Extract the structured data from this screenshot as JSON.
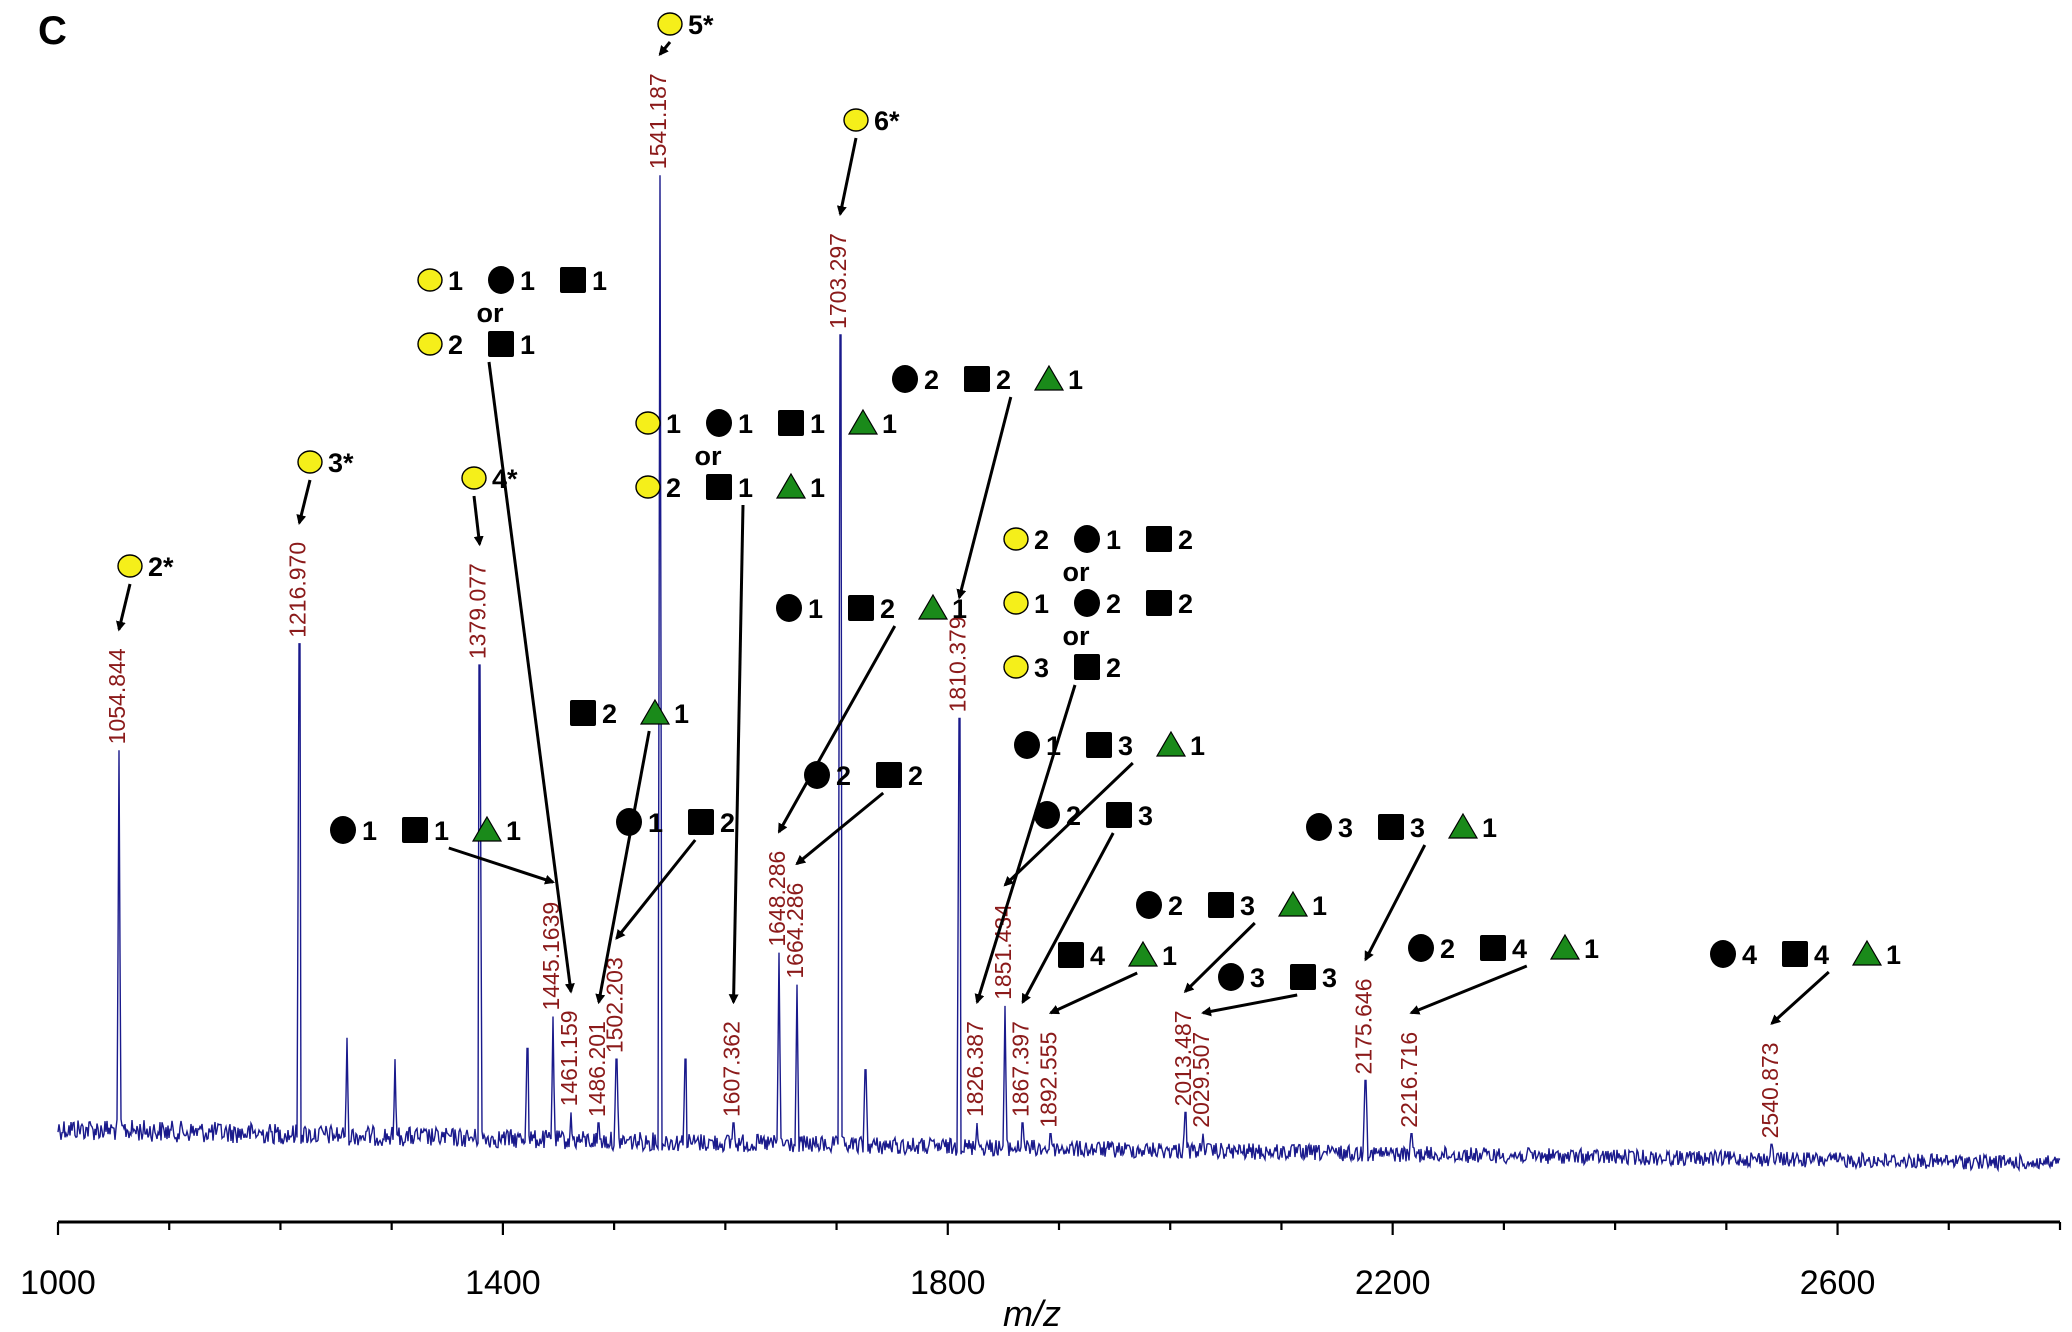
{
  "panel_letter": "C",
  "colors": {
    "trace": "#1a1a8c",
    "peak_label": "#8b1a1a",
    "galactose_circle": "#f5ef1a",
    "fucose_triangle": "#1a8a1a",
    "mannose_circle": "#000000",
    "glcnac_square": "#000000"
  },
  "chart_data": {
    "type": "line",
    "xlabel": "m/z",
    "ylabel": "",
    "title": "",
    "xlim": [
      1000,
      2800
    ],
    "xticks": [
      1000,
      1400,
      1800,
      2200,
      2600
    ],
    "grid": false,
    "legend": "none",
    "peaks": [
      {
        "mz": 1054.844,
        "label": "1054.844",
        "rel_height": 0.38
      },
      {
        "mz": 1216.97,
        "label": "1216.970",
        "rel_height": 0.48
      },
      {
        "mz": 1379.077,
        "label": "1379.077",
        "rel_height": 0.46
      },
      {
        "mz": 1445.1639,
        "label": "1445.1639",
        "rel_height": 0.13
      },
      {
        "mz": 1461.159,
        "label": "1461.159",
        "rel_height": 0.04
      },
      {
        "mz": 1486.201,
        "label": "1486.201",
        "rel_height": 0.03
      },
      {
        "mz": 1502.203,
        "label": "1502.203",
        "rel_height": 0.09
      },
      {
        "mz": 1541.187,
        "label": "1541.187",
        "rel_height": 0.92
      },
      {
        "mz": 1607.362,
        "label": "1607.362",
        "rel_height": 0.03
      },
      {
        "mz": 1648.286,
        "label": "1648.286",
        "rel_height": 0.19
      },
      {
        "mz": 1664.286,
        "label": "1664.286",
        "rel_height": 0.16
      },
      {
        "mz": 1703.297,
        "label": "1703.297",
        "rel_height": 0.77
      },
      {
        "mz": 1810.379,
        "label": "1810.379",
        "rel_height": 0.41
      },
      {
        "mz": 1826.387,
        "label": "1826.387",
        "rel_height": 0.03
      },
      {
        "mz": 1851.434,
        "label": "1851.434",
        "rel_height": 0.14
      },
      {
        "mz": 1867.397,
        "label": "1867.397",
        "rel_height": 0.03
      },
      {
        "mz": 1892.555,
        "label": "1892.555",
        "rel_height": 0.02
      },
      {
        "mz": 2013.487,
        "label": "2013.487",
        "rel_height": 0.04
      },
      {
        "mz": 2029.507,
        "label": "2029.507",
        "rel_height": 0.02
      },
      {
        "mz": 2175.646,
        "label": "2175.646",
        "rel_height": 0.07
      },
      {
        "mz": 2216.716,
        "label": "2216.716",
        "rel_height": 0.02
      },
      {
        "mz": 2540.873,
        "label": "2540.873",
        "rel_height": 0.01
      }
    ],
    "unlabeled_peaks": [
      {
        "mz": 1260,
        "rel_height": 0.11
      },
      {
        "mz": 1303,
        "rel_height": 0.09
      },
      {
        "mz": 1422,
        "rel_height": 0.1
      },
      {
        "mz": 1564,
        "rel_height": 0.09
      },
      {
        "mz": 1726,
        "rel_height": 0.08
      }
    ],
    "annotations": [
      {
        "rows": [
          [
            [
              "gal",
              "2*"
            ]
          ]
        ],
        "target": "1054.844"
      },
      {
        "rows": [
          [
            [
              "gal",
              "3*"
            ]
          ]
        ],
        "target": "1216.970"
      },
      {
        "rows": [
          [
            [
              "gal",
              "4*"
            ]
          ]
        ],
        "target": "1379.077"
      },
      {
        "rows": [
          [
            [
              "gal",
              "5*"
            ]
          ]
        ],
        "target": "1541.187"
      },
      {
        "rows": [
          [
            [
              "gal",
              "6*"
            ]
          ]
        ],
        "target": "1703.297"
      },
      {
        "rows": [
          [
            [
              "man",
              "1"
            ],
            [
              "sq",
              "1"
            ],
            [
              "tri",
              "1"
            ]
          ]
        ],
        "target": "1445.1639"
      },
      {
        "rows": [
          [
            [
              "gal",
              "1"
            ],
            [
              "man",
              "1"
            ],
            [
              "sq",
              "1"
            ]
          ],
          "or",
          [
            [
              "gal",
              "2"
            ],
            [
              "sq",
              "1"
            ]
          ]
        ],
        "target": "1461.159"
      },
      {
        "rows": [
          [
            [
              "sq",
              "2"
            ],
            [
              "tri",
              "1"
            ]
          ]
        ],
        "target": "1486.201"
      },
      {
        "rows": [
          [
            [
              "man",
              "1"
            ],
            [
              "sq",
              "2"
            ]
          ]
        ],
        "target": "1502.203"
      },
      {
        "rows": [
          [
            [
              "gal",
              "1"
            ],
            [
              "man",
              "1"
            ],
            [
              "sq",
              "1"
            ],
            [
              "tri",
              "1"
            ]
          ],
          "or",
          [
            [
              "gal",
              "2"
            ],
            [
              "sq",
              "1"
            ],
            [
              "tri",
              "1"
            ]
          ]
        ],
        "target": "1607.362"
      },
      {
        "rows": [
          [
            [
              "man",
              "1"
            ],
            [
              "sq",
              "2"
            ],
            [
              "tri",
              "1"
            ]
          ]
        ],
        "target": "1648.286"
      },
      {
        "rows": [
          [
            [
              "man",
              "2"
            ],
            [
              "sq",
              "2"
            ]
          ]
        ],
        "target": "1664.286"
      },
      {
        "rows": [
          [
            [
              "man",
              "2"
            ],
            [
              "sq",
              "2"
            ],
            [
              "tri",
              "1"
            ]
          ]
        ],
        "target": "1810.379"
      },
      {
        "rows": [
          [
            [
              "gal",
              "2"
            ],
            [
              "man",
              "1"
            ],
            [
              "sq",
              "2"
            ]
          ],
          "or",
          [
            [
              "gal",
              "1"
            ],
            [
              "man",
              "2"
            ],
            [
              "sq",
              "2"
            ]
          ],
          "or",
          [
            [
              "gal",
              "3"
            ],
            [
              "sq",
              "2"
            ]
          ]
        ],
        "target": "1826.387"
      },
      {
        "rows": [
          [
            [
              "man",
              "1"
            ],
            [
              "sq",
              "3"
            ],
            [
              "tri",
              "1"
            ]
          ]
        ],
        "target": "1851.434"
      },
      {
        "rows": [
          [
            [
              "man",
              "2"
            ],
            [
              "sq",
              "3"
            ]
          ]
        ],
        "target": "1867.397"
      },
      {
        "rows": [
          [
            [
              "sq",
              "4"
            ],
            [
              "tri",
              "1"
            ]
          ]
        ],
        "target": "1892.555"
      },
      {
        "rows": [
          [
            [
              "man",
              "2"
            ],
            [
              "sq",
              "3"
            ],
            [
              "tri",
              "1"
            ]
          ]
        ],
        "target": "2013.487"
      },
      {
        "rows": [
          [
            [
              "man",
              "3"
            ],
            [
              "sq",
              "3"
            ]
          ]
        ],
        "target": "2029.507"
      },
      {
        "rows": [
          [
            [
              "man",
              "3"
            ],
            [
              "sq",
              "3"
            ],
            [
              "tri",
              "1"
            ]
          ]
        ],
        "target": "2175.646"
      },
      {
        "rows": [
          [
            [
              "man",
              "2"
            ],
            [
              "sq",
              "4"
            ],
            [
              "tri",
              "1"
            ]
          ]
        ],
        "target": "2216.716"
      },
      {
        "rows": [
          [
            [
              "man",
              "4"
            ],
            [
              "sq",
              "4"
            ],
            [
              "tri",
              "1"
            ]
          ]
        ],
        "target": "2540.873"
      }
    ]
  }
}
